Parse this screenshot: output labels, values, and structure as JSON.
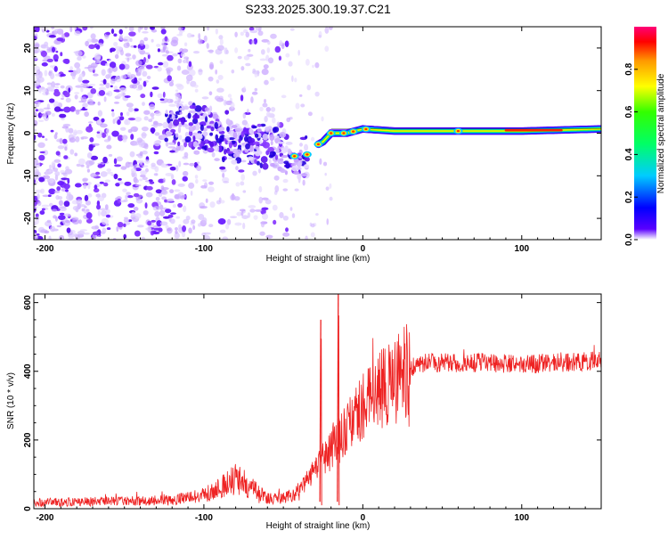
{
  "title": "S233.2025.300.19.37.C21",
  "chart_data": [
    {
      "type": "heatmap",
      "name": "spectrogram",
      "xlabel": "Height of straight line (km)",
      "ylabel": "Frequency (Hz)",
      "xlim": [
        -207,
        150
      ],
      "ylim": [
        -25,
        25
      ],
      "xticks": [
        -200,
        -100,
        0,
        100
      ],
      "yticks": [
        -20,
        -10,
        0,
        10,
        20
      ],
      "ridge": [
        {
          "x": -110,
          "y": 2
        },
        {
          "x": -100,
          "y": 1
        },
        {
          "x": -90,
          "y": -1
        },
        {
          "x": -80,
          "y": -2
        },
        {
          "x": -70,
          "y": -2.5
        },
        {
          "x": -60,
          "y": -3
        },
        {
          "x": -50,
          "y": -4
        },
        {
          "x": -45,
          "y": -5
        },
        {
          "x": -40,
          "y": -6
        },
        {
          "x": -35,
          "y": -5
        },
        {
          "x": -30,
          "y": -3
        },
        {
          "x": -25,
          "y": -2
        },
        {
          "x": -20,
          "y": 0
        },
        {
          "x": -10,
          "y": 0
        },
        {
          "x": 0,
          "y": 1
        },
        {
          "x": 20,
          "y": 0.5
        },
        {
          "x": 50,
          "y": 0.5
        },
        {
          "x": 100,
          "y": 0.5
        },
        {
          "x": 150,
          "y": 1
        }
      ],
      "colorbar": {
        "label": "Normalized spectral amplitude",
        "range": [
          0,
          1
        ],
        "ticks": [
          0.0,
          0.2,
          0.4,
          0.6,
          0.8
        ],
        "tick_labels": [
          "0.0",
          "0.2",
          "0.4",
          "0.6",
          "0.8"
        ],
        "colors": [
          "#ffffff",
          "#5000ff",
          "#0000ff",
          "#00aaff",
          "#00ffaa",
          "#00ff00",
          "#aaff00",
          "#ffff00",
          "#ffaa00",
          "#ff0000",
          "#ff0088"
        ]
      }
    },
    {
      "type": "line",
      "name": "snr",
      "xlabel": "Height of straight line (km)",
      "ylabel": "SNR (10 * v/v)",
      "xlim": [
        -207,
        150
      ],
      "ylim": [
        0,
        625
      ],
      "xticks": [
        -200,
        -100,
        0,
        100
      ],
      "yticks": [
        0,
        200,
        400,
        600
      ],
      "color": "#ee2222",
      "trend": [
        {
          "x": -207,
          "y": 18
        },
        {
          "x": -150,
          "y": 22
        },
        {
          "x": -120,
          "y": 25
        },
        {
          "x": -100,
          "y": 40
        },
        {
          "x": -90,
          "y": 60
        },
        {
          "x": -80,
          "y": 90
        },
        {
          "x": -70,
          "y": 60
        },
        {
          "x": -60,
          "y": 30
        },
        {
          "x": -50,
          "y": 30
        },
        {
          "x": -40,
          "y": 50
        },
        {
          "x": -30,
          "y": 120
        },
        {
          "x": -20,
          "y": 170
        },
        {
          "x": -10,
          "y": 230
        },
        {
          "x": 0,
          "y": 290
        },
        {
          "x": 10,
          "y": 340
        },
        {
          "x": 20,
          "y": 370
        },
        {
          "x": 30,
          "y": 410
        },
        {
          "x": 40,
          "y": 425
        },
        {
          "x": 60,
          "y": 425
        },
        {
          "x": 80,
          "y": 425
        },
        {
          "x": 100,
          "y": 420
        },
        {
          "x": 120,
          "y": 425
        },
        {
          "x": 150,
          "y": 430
        }
      ],
      "spikes": [
        {
          "x": -27,
          "y": 550
        },
        {
          "x": -16,
          "y": 625
        }
      ]
    }
  ]
}
